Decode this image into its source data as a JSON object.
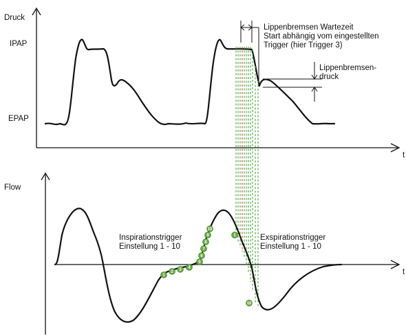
{
  "labels": {
    "druck": "Druck",
    "ipap": "IPAP",
    "epap": "EPAP",
    "t_top": "t",
    "flow": "Flow",
    "t_bottom": "t",
    "wartezeit_line1": "Lippenbremsen Wartezeit",
    "wartezeit_line2": "Start abhängig vom eingestellten",
    "wartezeit_line3": "Trigger (hier Trigger 3)",
    "bremsdruck_line1": "Lippenbremsen-",
    "bremsdruck_line2": "druck",
    "insp_line1": "Inspirationstrigger",
    "insp_line2": "Einstellung 1 - 10",
    "exsp_line1": "Exspirationstrigger",
    "exsp_line2": "Einstellung 1 - 10"
  },
  "inspiration_markers": [
    "1",
    "2",
    "3",
    "4",
    "5",
    "6",
    "7",
    "8",
    "9",
    "10"
  ],
  "expiration_markers": [
    "1",
    "10"
  ],
  "colors": {
    "curve": "#111111",
    "trigger_marker": "#6aac45",
    "trigger_dash": "#49a33a",
    "selected_trigger_dash": "#e0402a"
  }
}
